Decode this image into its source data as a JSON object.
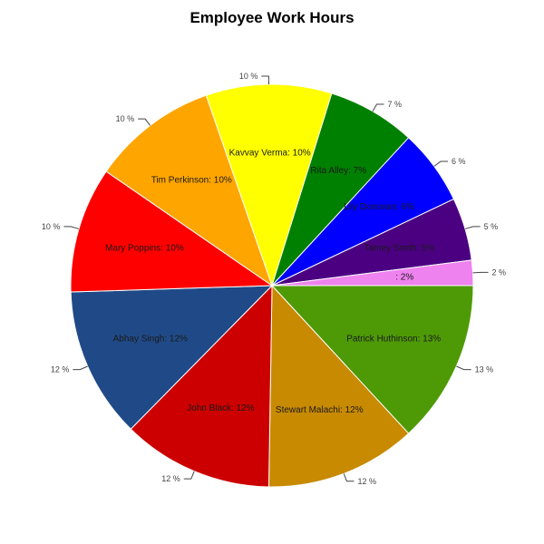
{
  "chart_data": {
    "type": "pie",
    "title": "Employee Work Hours",
    "start_angle_deg": 0,
    "direction": "clockwise",
    "slices": [
      {
        "name": "Patrick Huthinson",
        "value": 13,
        "label": "Patrick Huthinson: 13%",
        "pct_label": "13 %",
        "color": "#4e9a06"
      },
      {
        "name": "Stewart Malachi",
        "value": 12,
        "label": "Stewart Malachi: 12%",
        "pct_label": "12 %",
        "color": "#c88a00"
      },
      {
        "name": "John Black",
        "value": 12,
        "label": "John Black: 12%",
        "pct_label": "12 %",
        "color": "#cc0000"
      },
      {
        "name": "Abhay Singh",
        "value": 12,
        "label": "Abhay Singh: 12%",
        "pct_label": "12 %",
        "color": "#204a87"
      },
      {
        "name": "Mary Poppins",
        "value": 10,
        "label": "Mary Poppins: 10%",
        "pct_label": "10 %",
        "color": "#ff0000"
      },
      {
        "name": "Tim Perkinson",
        "value": 10,
        "label": "Tim Perkinson: 10%",
        "pct_label": "10 %",
        "color": "#ffa500"
      },
      {
        "name": "Kavvay Verma",
        "value": 10,
        "label": "Kavvay Verma: 10%",
        "pct_label": "10 %",
        "color": "#ffff00"
      },
      {
        "name": "Rita Alley",
        "value": 7,
        "label": "Rita Alley: 7%",
        "pct_label": "7 %",
        "color": "#008000"
      },
      {
        "name": "Lily Donovan",
        "value": 6,
        "label": "Lily Donovan: 6%",
        "pct_label": "6 %",
        "color": "#0000ff"
      },
      {
        "name": "Tamey Smith",
        "value": 5,
        "label": "Tamey Smith: 5%",
        "pct_label": "5 %",
        "color": "#4b0082"
      },
      {
        "name": "",
        "value": 2,
        "label": ": 2%",
        "pct_label": "2 %",
        "color": "#ee82ee"
      }
    ]
  }
}
